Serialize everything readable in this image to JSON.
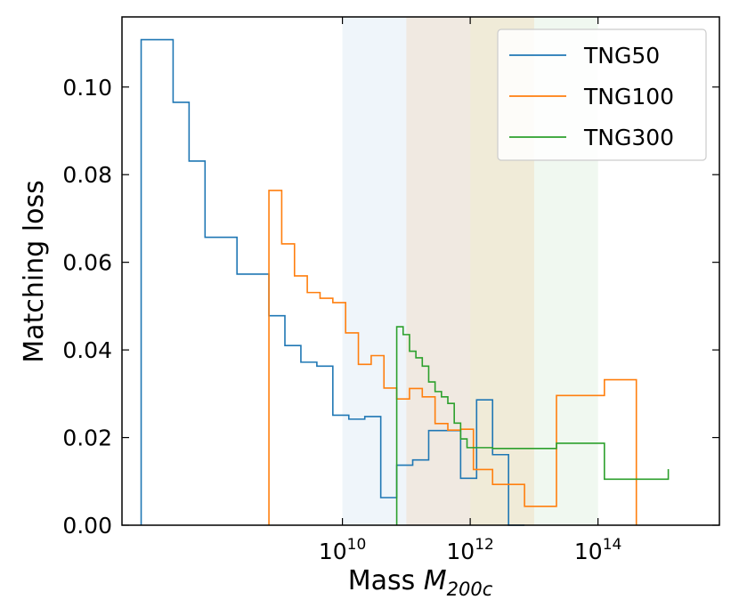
{
  "chart_data": {
    "type": "step-histogram",
    "xlabel": "Mass ",
    "xlabel_symbol": "M",
    "xlabel_subscript": "200c",
    "ylabel": "Matching loss",
    "x_scale": "log10",
    "xlim_log10": [
      6.55,
      15.9
    ],
    "ylim": [
      0,
      0.116
    ],
    "yticks": [
      {
        "value": 0.0,
        "label": "0.00"
      },
      {
        "value": 0.02,
        "label": "0.02"
      },
      {
        "value": 0.04,
        "label": "0.04"
      },
      {
        "value": 0.06,
        "label": "0.06"
      },
      {
        "value": 0.08,
        "label": "0.08"
      },
      {
        "value": 0.1,
        "label": "0.10"
      }
    ],
    "xticks": [
      {
        "log10": 10,
        "base": "10",
        "exp": "10"
      },
      {
        "log10": 12,
        "base": "10",
        "exp": "12"
      },
      {
        "log10": 14,
        "base": "10",
        "exp": "14"
      }
    ],
    "shaded_ranges": [
      {
        "from_log10": 10,
        "to_log10": 12,
        "color": "#1f77b4",
        "opacity": 0.07
      },
      {
        "from_log10": 11,
        "to_log10": 13,
        "color": "#ff7f0e",
        "opacity": 0.1
      },
      {
        "from_log10": 12,
        "to_log10": 14,
        "color": "#2ca02c",
        "opacity": 0.07
      }
    ],
    "legend_position": "top-right",
    "series": [
      {
        "name": "TNG50",
        "color": "#1f77b4",
        "edges_log10": [
          6.85,
          7.1,
          7.35,
          7.6,
          7.85,
          8.1,
          8.35,
          8.6,
          8.85,
          9.1,
          9.35,
          9.6,
          9.85,
          10.1,
          10.35,
          10.6,
          10.85,
          11.1,
          11.35,
          11.6,
          11.85,
          12.1,
          12.35,
          12.6,
          12.85
        ],
        "values": [
          0.1108,
          0.1108,
          0.0965,
          0.0831,
          0.0657,
          0.0657,
          0.0573,
          0.0573,
          0.0478,
          0.041,
          0.0372,
          0.0363,
          0.0251,
          0.0242,
          0.0248,
          0.0063,
          0.0137,
          0.0149,
          0.0216,
          0.0216,
          0.0107,
          0.0286,
          0.0161,
          0.0
        ]
      },
      {
        "name": "TNG100",
        "color": "#ff7f0e",
        "edges_log10": [
          8.85,
          9.05,
          9.25,
          9.45,
          9.65,
          9.85,
          10.05,
          10.25,
          10.45,
          10.65,
          10.85,
          11.05,
          11.25,
          11.45,
          11.65,
          11.85,
          12.05,
          12.35,
          12.6,
          12.85,
          13.1,
          13.35,
          13.6,
          14.1,
          14.6
        ],
        "values": [
          0.0764,
          0.0642,
          0.0569,
          0.0531,
          0.0518,
          0.0508,
          0.0439,
          0.0367,
          0.0387,
          0.0313,
          0.0288,
          0.0312,
          0.0293,
          0.0232,
          0.0217,
          0.0219,
          0.0127,
          0.0093,
          0.0093,
          0.0043,
          0.0043,
          0.0296,
          0.0296,
          0.0332
        ]
      },
      {
        "name": "TNG300",
        "color": "#2ca02c",
        "edges_log10": [
          10.85,
          10.95,
          11.05,
          11.15,
          11.25,
          11.35,
          11.45,
          11.55,
          11.65,
          11.75,
          11.85,
          11.95,
          12.1,
          12.35,
          12.6,
          12.85,
          13.1,
          13.35,
          13.6,
          14.1,
          14.6,
          15.1
        ],
        "values": [
          0.0453,
          0.0435,
          0.0397,
          0.0382,
          0.0363,
          0.0327,
          0.0305,
          0.0293,
          0.0278,
          0.0233,
          0.0197,
          0.0177,
          0.0177,
          0.0175,
          0.0175,
          0.0175,
          0.0175,
          0.0187,
          0.0187,
          0.0105,
          0.0105,
          0.0128
        ]
      }
    ]
  }
}
